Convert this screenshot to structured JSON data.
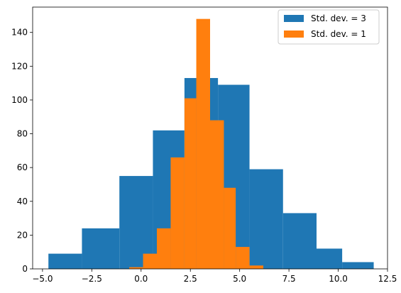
{
  "chart_data": {
    "type": "bar",
    "title": "",
    "xlabel": "",
    "ylabel": "",
    "xlim": [
      -5.5,
      12.5
    ],
    "ylim": [
      0,
      155
    ],
    "grid": false,
    "legend_position": "top-right",
    "x_ticks": [
      -5.0,
      -2.5,
      0.0,
      2.5,
      5.0,
      7.5,
      10.0,
      12.5
    ],
    "x_tick_labels": [
      "−5.0",
      "−2.5",
      "0.0",
      "2.5",
      "5.0",
      "7.5",
      "10.0",
      "12.5"
    ],
    "y_ticks": [
      0,
      20,
      40,
      60,
      80,
      100,
      120,
      140
    ],
    "y_tick_labels": [
      "0",
      "20",
      "40",
      "60",
      "80",
      "100",
      "120",
      "140"
    ],
    "series": [
      {
        "name": "Std. dev. = 3",
        "color": "#1f77b4",
        "bin_edges": [
          -4.7,
          -3.0,
          -1.1,
          0.6,
          2.2,
          3.9,
          5.5,
          7.2,
          8.9,
          10.2,
          11.8
        ],
        "counts": [
          9,
          24,
          55,
          82,
          113,
          109,
          59,
          33,
          12,
          4
        ]
      },
      {
        "name": "Std. dev. = 1",
        "color": "#ff7f0e",
        "bin_edges": [
          -0.6,
          0.1,
          0.8,
          1.5,
          2.2,
          2.8,
          3.5,
          4.2,
          4.8,
          5.5,
          6.2
        ],
        "counts": [
          1,
          9,
          24,
          66,
          101,
          148,
          88,
          48,
          13,
          2
        ]
      }
    ]
  }
}
